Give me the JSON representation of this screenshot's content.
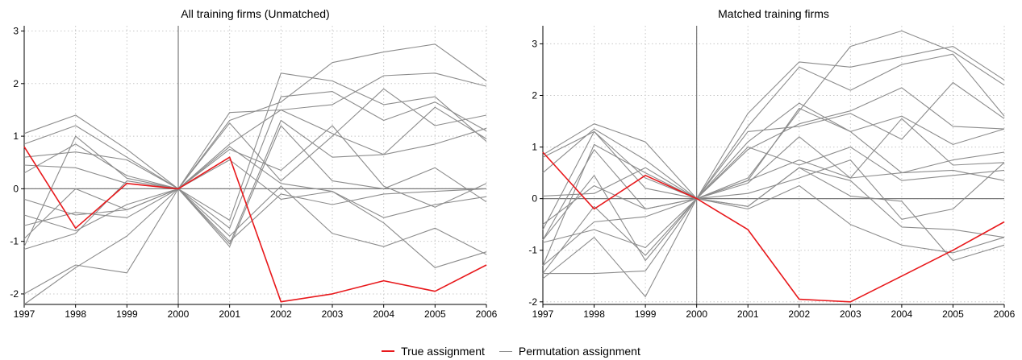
{
  "chart_data": [
    {
      "type": "line",
      "title": "All training firms (Unmatched)",
      "xlabel": "",
      "ylabel": "",
      "x": [
        1997,
        1998,
        1999,
        2000,
        2001,
        2002,
        2003,
        2004,
        2005,
        2006
      ],
      "ylim": [
        -2.2,
        3.1
      ],
      "yticks": [
        -2,
        -1,
        0,
        1,
        2,
        3
      ],
      "reference_line_x": 2000,
      "reference_line_y": 0,
      "grid": true,
      "series": [
        {
          "role": "true",
          "values": [
            0.8,
            -0.75,
            0.1,
            0.0,
            0.6,
            -2.15,
            -2.0,
            -1.75,
            -1.95,
            -1.45
          ]
        },
        {
          "role": "perm",
          "values": [
            1.05,
            1.4,
            0.75,
            0.0,
            -0.6,
            2.2,
            2.05,
            1.6,
            1.75,
            0.9
          ]
        },
        {
          "role": "perm",
          "values": [
            0.85,
            1.2,
            0.6,
            0.0,
            1.3,
            1.65,
            2.4,
            2.6,
            2.75,
            2.05
          ]
        },
        {
          "role": "perm",
          "values": [
            0.6,
            0.7,
            0.55,
            0.0,
            1.45,
            1.5,
            1.6,
            2.15,
            2.2,
            1.95
          ]
        },
        {
          "role": "perm",
          "values": [
            0.3,
            0.85,
            0.25,
            0.0,
            -0.75,
            1.75,
            1.85,
            1.3,
            1.65,
            1.1
          ]
        },
        {
          "role": "perm",
          "values": [
            -0.2,
            -0.5,
            -0.4,
            0.0,
            1.25,
            0.15,
            1.0,
            1.9,
            1.2,
            1.4
          ]
        },
        {
          "role": "perm",
          "values": [
            0.45,
            0.4,
            0.1,
            0.0,
            -1.05,
            1.3,
            0.6,
            0.65,
            0.85,
            1.15
          ]
        },
        {
          "role": "perm",
          "values": [
            -0.5,
            -0.8,
            -0.3,
            0.0,
            0.85,
            1.5,
            1.05,
            0.65,
            1.55,
            0.95
          ]
        },
        {
          "role": "perm",
          "values": [
            -0.7,
            -0.45,
            -0.55,
            0.0,
            -1.1,
            1.2,
            0.15,
            0.0,
            0.4,
            -0.25
          ]
        },
        {
          "role": "perm",
          "values": [
            -0.95,
            0.0,
            -0.4,
            0.0,
            0.75,
            0.35,
            1.2,
            0.05,
            -0.35,
            0.1
          ]
        },
        {
          "role": "perm",
          "values": [
            -1.1,
            1.0,
            0.2,
            0.0,
            -1.0,
            -0.1,
            -0.3,
            -0.1,
            -0.05,
            0.0
          ]
        },
        {
          "role": "perm",
          "values": [
            -1.15,
            -0.85,
            0.15,
            0.0,
            0.8,
            0.1,
            -0.05,
            -0.55,
            -0.3,
            -0.15
          ]
        },
        {
          "role": "perm",
          "values": [
            -2.0,
            -1.45,
            -1.6,
            0.0,
            -0.9,
            0.05,
            -0.85,
            -1.1,
            -0.75,
            -1.25
          ]
        },
        {
          "role": "perm",
          "values": [
            -2.2,
            -1.5,
            -0.9,
            0.0,
            0.55,
            -0.2,
            -0.05,
            -0.65,
            -1.5,
            -1.2
          ]
        }
      ]
    },
    {
      "type": "line",
      "title": "Matched training firms",
      "xlabel": "",
      "ylabel": "",
      "x": [
        1997,
        1998,
        1999,
        2000,
        2001,
        2002,
        2003,
        2004,
        2005,
        2006
      ],
      "ylim": [
        -2.05,
        3.35
      ],
      "yticks": [
        -2,
        -1,
        0,
        1,
        2,
        3
      ],
      "reference_line_x": 2000,
      "reference_line_y": 0,
      "grid": true,
      "series": [
        {
          "role": "true",
          "values": [
            0.9,
            -0.2,
            0.45,
            0.0,
            -0.6,
            -1.95,
            -2.0,
            -1.5,
            -1.0,
            -0.45
          ]
        },
        {
          "role": "perm",
          "values": [
            0.85,
            1.45,
            1.1,
            0.0,
            1.65,
            2.65,
            2.55,
            2.75,
            2.95,
            2.3
          ]
        },
        {
          "role": "perm",
          "values": [
            0.5,
            1.35,
            0.75,
            0.0,
            0.4,
            1.7,
            2.95,
            3.25,
            2.85,
            2.2
          ]
        },
        {
          "role": "perm",
          "values": [
            0.8,
            1.3,
            0.2,
            0.0,
            1.4,
            2.55,
            2.1,
            2.6,
            2.8,
            1.6
          ]
        },
        {
          "role": "perm",
          "values": [
            -0.6,
            1.3,
            0.4,
            0.0,
            1.1,
            1.85,
            1.3,
            1.6,
            1.05,
            1.35
          ]
        },
        {
          "role": "perm",
          "values": [
            0.05,
            0.1,
            0.6,
            0.0,
            0.95,
            1.45,
            1.7,
            2.15,
            1.4,
            1.35
          ]
        },
        {
          "role": "perm",
          "values": [
            -0.8,
            0.95,
            -0.2,
            0.0,
            1.3,
            1.4,
            1.65,
            1.15,
            2.25,
            1.55
          ]
        },
        {
          "role": "perm",
          "values": [
            -1.3,
            1.05,
            0.5,
            0.0,
            0.35,
            1.75,
            1.3,
            0.5,
            0.75,
            0.9
          ]
        },
        {
          "role": "perm",
          "values": [
            -0.5,
            0.25,
            -0.2,
            0.0,
            0.35,
            0.75,
            0.4,
            1.55,
            0.65,
            0.7
          ]
        },
        {
          "role": "perm",
          "values": [
            -1.3,
            -0.45,
            -0.35,
            0.0,
            1.0,
            0.65,
            1.0,
            0.35,
            0.45,
            0.55
          ]
        },
        {
          "role": "perm",
          "values": [
            -0.85,
            -0.6,
            -0.95,
            0.0,
            0.3,
            1.2,
            0.4,
            0.5,
            0.55,
            0.35
          ]
        },
        {
          "role": "perm",
          "values": [
            -1.45,
            -1.45,
            -1.4,
            0.0,
            0.1,
            0.4,
            0.75,
            -0.4,
            -0.2,
            0.7
          ]
        },
        {
          "role": "perm",
          "values": [
            -1.55,
            -0.75,
            -1.9,
            0.0,
            -0.2,
            0.25,
            -0.5,
            -0.9,
            -1.05,
            -0.75
          ]
        },
        {
          "role": "perm",
          "values": [
            -1.45,
            -0.15,
            -1.1,
            0.0,
            -0.15,
            0.6,
            0.35,
            -0.55,
            -0.6,
            -0.75
          ]
        },
        {
          "role": "perm",
          "values": [
            -0.8,
            0.45,
            -1.2,
            0.0,
            -0.15,
            0.6,
            0.05,
            -0.05,
            -1.2,
            -0.9
          ]
        }
      ]
    }
  ],
  "legend": {
    "true_label": "True assignment",
    "perm_label": "Permutation assignment"
  },
  "colors": {
    "true": "#e8191c",
    "perm": "#8c8c8c",
    "grid": "#c8c8c8",
    "axis": "#000000"
  }
}
